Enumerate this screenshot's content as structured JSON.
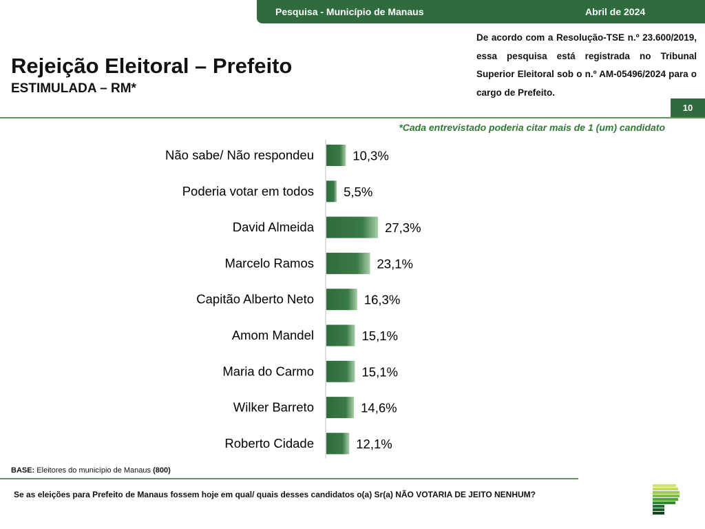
{
  "header": {
    "survey": "Pesquisa - Município de Manaus",
    "date": "Abril de 2024",
    "page": "10"
  },
  "title": "Rejeição Eleitoral – Prefeito",
  "subtitle": "ESTIMULADA – RM*",
  "registration": "De acordo com a Resolução-TSE n.º 23.600/2019, essa pesquisa está registrada no Tribunal Superior Eleitoral sob o n.º AM-05496/2024 para o cargo de Prefeito.",
  "note": "*Cada entrevistado poderia citar mais de 1 (um) candidato",
  "base": {
    "label": "BASE:",
    "text": "Eleitores do município de Manaus",
    "count": "(800)"
  },
  "question": "Se as eleições para Prefeito de Manaus fossem hoje em qual/ quais desses candidatos o(a) Sr(a) NÃO VOTARIA DE JEITO NENHUM?",
  "colors": {
    "bar": "#2f6b3c",
    "accent": "#5e9a57"
  },
  "chart_data": {
    "type": "bar",
    "orientation": "horizontal",
    "title": "",
    "xlabel": "",
    "ylabel": "",
    "xlim": [
      0,
      100
    ],
    "categories": [
      "Não sabe/ Não respondeu",
      "Poderia votar em todos",
      "David Almeida",
      "Marcelo Ramos",
      "Capitão Alberto Neto",
      "Amom Mandel",
      "Maria do Carmo",
      "Wilker Barreto",
      "Roberto Cidade"
    ],
    "values": [
      10.3,
      5.5,
      27.3,
      23.1,
      16.3,
      15.1,
      15.1,
      14.6,
      12.1
    ],
    "labels": [
      "10,3%",
      "5,5%",
      "27,3%",
      "23,1%",
      "16,3%",
      "15,1%",
      "15,1%",
      "14,6%",
      "12,1%"
    ]
  }
}
